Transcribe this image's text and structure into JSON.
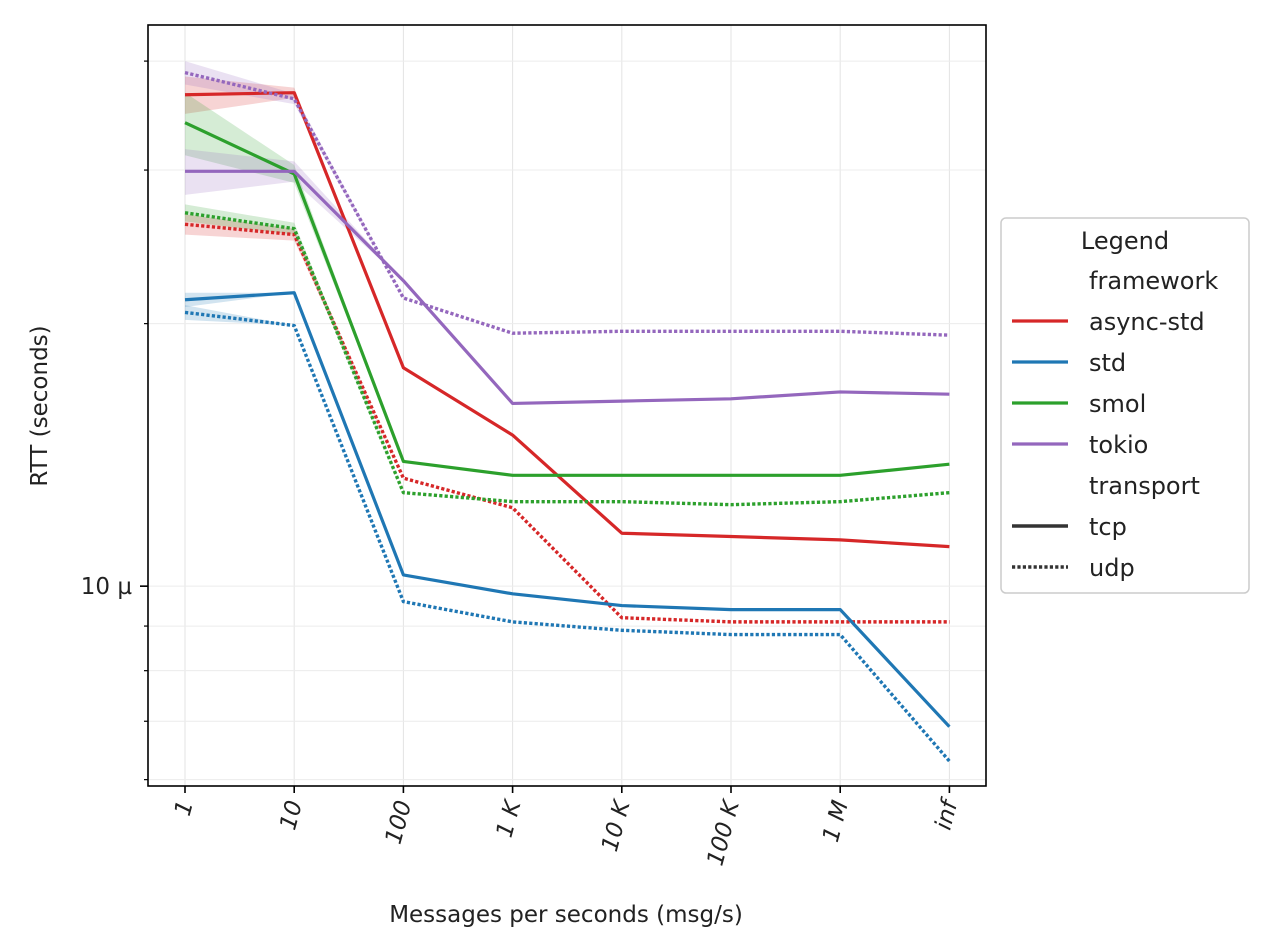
{
  "chart_data": {
    "type": "line",
    "title": "",
    "xlabel": "Messages per seconds (msg/s)",
    "ylabel": "RTT (seconds)",
    "y_scale": "log",
    "grid": true,
    "categories": [
      "1",
      "10",
      "100",
      "1 K",
      "10 K",
      "100 K",
      "1 M",
      "inf"
    ],
    "y_ticks": [
      {
        "value": 1e-05,
        "label": "10 µ"
      }
    ],
    "ylim": [
      5.9e-06,
      4.4e-05
    ],
    "legend": {
      "title": "Legend",
      "placement": "center-right",
      "framework_header": "framework",
      "transport_header": "transport",
      "frameworks": [
        {
          "name": "async-std",
          "color": "#d62728"
        },
        {
          "name": "std",
          "color": "#1f77b4"
        },
        {
          "name": "smol",
          "color": "#2ca02c"
        },
        {
          "name": "tokio",
          "color": "#9467bd"
        }
      ],
      "transports": [
        {
          "name": "tcp",
          "style": "solid"
        },
        {
          "name": "udp",
          "style": "dotted"
        }
      ]
    },
    "series": [
      {
        "framework": "async-std",
        "transport": "tcp",
        "values": [
          3.66e-05,
          3.68e-05,
          1.78e-05,
          1.49e-05,
          1.15e-05,
          1.14e-05,
          1.13e-05,
          1.11e-05
        ],
        "band": [
          1.8e-06,
          5e-07,
          0,
          0,
          0,
          0,
          0,
          0
        ]
      },
      {
        "framework": "async-std",
        "transport": "udp",
        "values": [
          2.6e-05,
          2.53e-05,
          1.33e-05,
          1.23e-05,
          9.2e-06,
          9.1e-06,
          9.1e-06,
          9.1e-06
        ],
        "band": [
          7e-07,
          4e-07,
          0,
          0,
          0,
          0,
          0,
          0
        ]
      },
      {
        "framework": "std",
        "transport": "tcp",
        "values": [
          2.13e-05,
          2.17e-05,
          1.03e-05,
          9.8e-06,
          9.5e-06,
          9.4e-06,
          9.4e-06,
          6.9e-06
        ],
        "band": [
          4e-07,
          0,
          0,
          0,
          0,
          0,
          0,
          0
        ]
      },
      {
        "framework": "std",
        "transport": "udp",
        "values": [
          2.06e-05,
          1.99e-05,
          9.6e-06,
          9.1e-06,
          8.9e-06,
          8.8e-06,
          8.8e-06,
          6.3e-06
        ],
        "band": [
          4e-07,
          0,
          0,
          0,
          0,
          0,
          0,
          0
        ]
      },
      {
        "framework": "smol",
        "transport": "tcp",
        "values": [
          3.4e-05,
          2.97e-05,
          1.39e-05,
          1.34e-05,
          1.34e-05,
          1.34e-05,
          1.34e-05,
          1.38e-05
        ],
        "band": [
          2.8e-06,
          7e-07,
          0,
          0,
          0,
          0,
          0,
          0
        ]
      },
      {
        "framework": "smol",
        "transport": "udp",
        "values": [
          2.68e-05,
          2.57e-05,
          1.28e-05,
          1.25e-05,
          1.25e-05,
          1.24e-05,
          1.25e-05,
          1.28e-05
        ],
        "band": [
          6e-07,
          4e-07,
          0,
          0,
          0,
          0,
          0,
          0
        ]
      },
      {
        "framework": "tokio",
        "transport": "tcp",
        "values": [
          2.99e-05,
          2.99e-05,
          2.24e-05,
          1.62e-05,
          1.63e-05,
          1.64e-05,
          1.67e-05,
          1.66e-05
        ],
        "band": [
          1.8e-06,
          8e-07,
          0,
          0,
          0,
          0,
          0,
          0
        ]
      },
      {
        "framework": "tokio",
        "transport": "udp",
        "values": [
          3.88e-05,
          3.62e-05,
          2.14e-05,
          1.95e-05,
          1.96e-05,
          1.96e-05,
          1.96e-05,
          1.94e-05
        ],
        "band": [
          1.2e-06,
          5e-07,
          0,
          0,
          0,
          0,
          0,
          0
        ]
      }
    ]
  }
}
